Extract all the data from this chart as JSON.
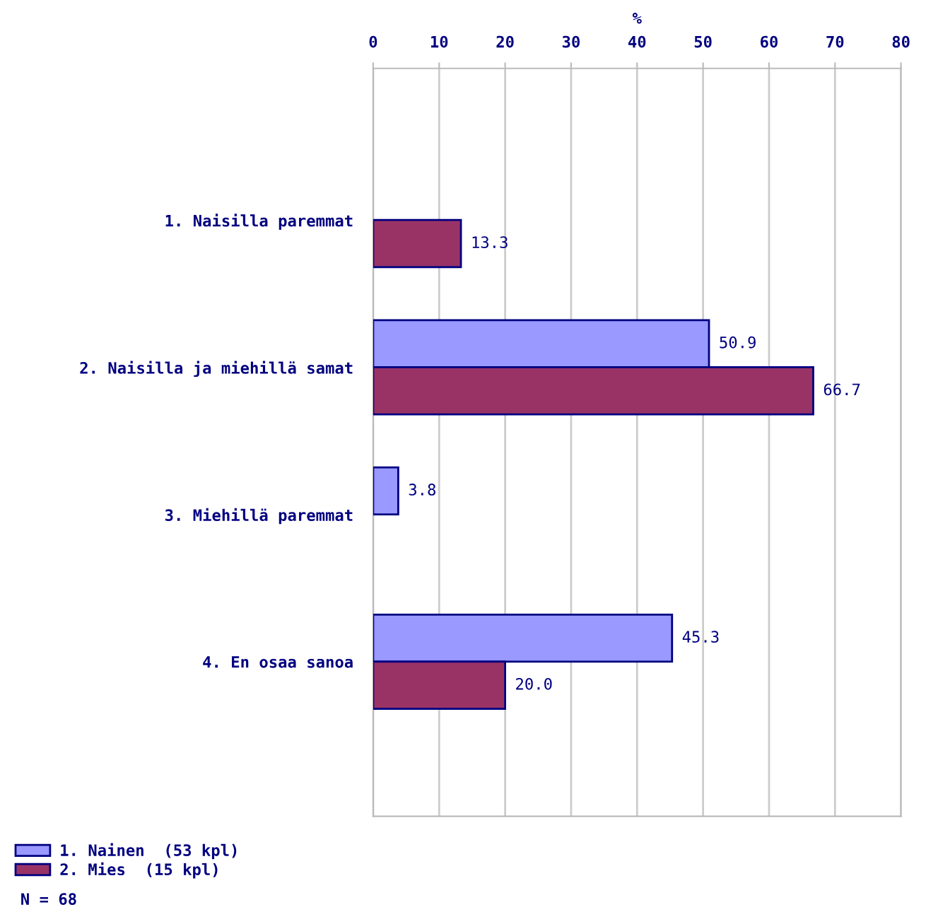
{
  "chart_data": {
    "type": "bar",
    "orientation": "horizontal",
    "xlabel": "%",
    "categories": [
      "1. Naisilla paremmat",
      "2. Naisilla ja miehillä samat",
      "3. Miehillä paremmat",
      "4. En osaa sanoa"
    ],
    "series": [
      {
        "name": "1. Nainen  (53 kpl)",
        "color": "#9999ff",
        "values": [
          null,
          50.9,
          3.8,
          45.3
        ],
        "value_labels": [
          null,
          "50.9",
          "3.8",
          "45.3"
        ]
      },
      {
        "name": "2. Mies  (15 kpl)",
        "color": "#993366",
        "values": [
          13.3,
          66.7,
          null,
          20.0
        ],
        "value_labels": [
          "13.3",
          "66.7",
          null,
          "20.0"
        ]
      }
    ],
    "xlim": [
      0,
      80
    ],
    "xticks": [
      0,
      10,
      20,
      30,
      40,
      50,
      60,
      70,
      80
    ],
    "grid": "x",
    "legend": "bottom left",
    "annotations": [
      "N = 68"
    ]
  }
}
